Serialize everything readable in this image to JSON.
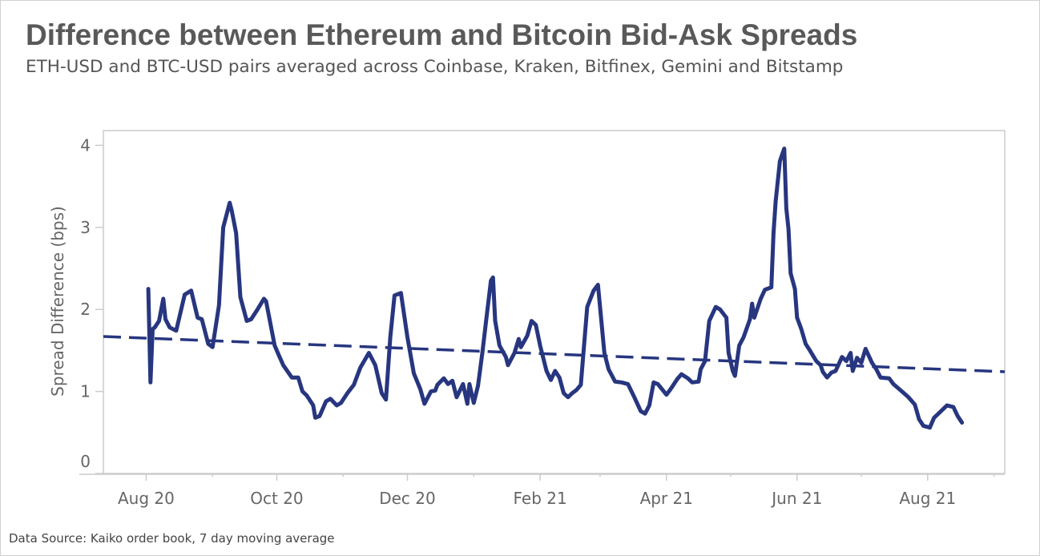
{
  "title": "Difference between Ethereum and Bitcoin Bid-Ask Spreads",
  "subtitle": "ETH-USD and BTC-USD pairs averaged across Coinbase, Kraken, Bitfinex, Gemini and Bitstamp",
  "source": "Data Source: Kaiko order book, 7 day moving average",
  "colors": {
    "series": "#27367f",
    "trend": "#27367f",
    "axis": "#cccccc",
    "text": "#666666"
  },
  "chart_data": {
    "type": "line",
    "title": "Difference between Ethereum and Bitcoin Bid-Ask Spreads",
    "xlabel": "",
    "ylabel": "Spread Difference (bps)",
    "xlim": [
      "2020-07-12",
      "2021-09-06"
    ],
    "ylim": [
      0,
      4.18
    ],
    "grid": false,
    "legend": "none",
    "y_ticks": [
      0,
      1,
      2,
      3,
      4
    ],
    "x_ticks": [
      {
        "date": "2020-08-01",
        "label": "Aug 20"
      },
      {
        "date": "2020-10-01",
        "label": "Oct 20"
      },
      {
        "date": "2020-12-01",
        "label": "Dec 20"
      },
      {
        "date": "2021-02-01",
        "label": "Feb 21"
      },
      {
        "date": "2021-04-01",
        "label": "Apr 21"
      },
      {
        "date": "2021-06-01",
        "label": "Jun 21"
      },
      {
        "date": "2021-08-01",
        "label": "Aug 21"
      }
    ],
    "x_minor_ticks": [
      "2020-09-01",
      "2020-11-01",
      "2021-01-01",
      "2021-03-01",
      "2021-05-01",
      "2021-07-01",
      "2021-09-01"
    ],
    "trendline": {
      "style": "dashed",
      "x": [
        "2020-07-12",
        "2021-09-06"
      ],
      "y": [
        1.67,
        1.24
      ]
    },
    "series": [
      {
        "x": [
          "2020-08-02",
          "2020-08-03",
          "2020-08-04",
          "2020-08-05",
          "2020-08-07",
          "2020-08-09",
          "2020-08-10",
          "2020-08-12",
          "2020-08-15",
          "2020-08-19",
          "2020-08-22",
          "2020-08-25",
          "2020-08-27",
          "2020-08-30",
          "2020-09-01",
          "2020-09-04",
          "2020-09-06",
          "2020-09-09",
          "2020-09-10",
          "2020-09-12",
          "2020-09-14",
          "2020-09-17",
          "2020-09-19",
          "2020-09-22",
          "2020-09-25",
          "2020-09-26",
          "2020-09-30",
          "2020-10-02",
          "2020-10-04",
          "2020-10-08",
          "2020-10-11",
          "2020-10-13",
          "2020-10-15",
          "2020-10-18",
          "2020-10-19",
          "2020-10-21",
          "2020-10-24",
          "2020-10-26",
          "2020-10-29",
          "2020-10-31",
          "2020-11-03",
          "2020-11-06",
          "2020-11-09",
          "2020-11-13",
          "2020-11-16",
          "2020-11-19",
          "2020-11-21",
          "2020-11-23",
          "2020-11-25",
          "2020-11-28",
          "2020-12-01",
          "2020-12-04",
          "2020-12-07",
          "2020-12-09",
          "2020-12-12",
          "2020-12-14",
          "2020-12-15",
          "2020-12-18",
          "2020-12-20",
          "2020-12-22",
          "2020-12-24",
          "2020-12-27",
          "2020-12-29",
          "2020-12-30",
          "2021-01-01",
          "2021-01-03",
          "2021-01-05",
          "2021-01-07",
          "2021-01-09",
          "2021-01-10",
          "2021-01-11",
          "2021-01-13",
          "2021-01-16",
          "2021-01-17",
          "2021-01-20",
          "2021-01-22",
          "2021-01-23",
          "2021-01-26",
          "2021-01-28",
          "2021-01-30",
          "2021-02-01",
          "2021-02-04",
          "2021-02-06",
          "2021-02-08",
          "2021-02-10",
          "2021-02-12",
          "2021-02-14",
          "2021-02-16",
          "2021-02-18",
          "2021-02-20",
          "2021-02-23",
          "2021-02-26",
          "2021-02-28",
          "2021-03-03",
          "2021-03-05",
          "2021-03-08",
          "2021-03-11",
          "2021-03-14",
          "2021-03-17",
          "2021-03-20",
          "2021-03-22",
          "2021-03-24",
          "2021-03-26",
          "2021-03-28",
          "2021-04-01",
          "2021-04-03",
          "2021-04-06",
          "2021-04-08",
          "2021-04-11",
          "2021-04-13",
          "2021-04-16",
          "2021-04-17",
          "2021-04-19",
          "2021-04-21",
          "2021-04-24",
          "2021-04-26",
          "2021-04-29",
          "2021-04-30",
          "2021-05-02",
          "2021-05-03",
          "2021-05-05",
          "2021-05-07",
          "2021-05-10",
          "2021-05-11",
          "2021-05-12",
          "2021-05-15",
          "2021-05-17",
          "2021-05-20",
          "2021-05-21",
          "2021-05-22",
          "2021-05-24",
          "2021-05-26",
          "2021-05-27",
          "2021-05-28",
          "2021-05-29",
          "2021-05-31",
          "2021-06-01",
          "2021-06-03",
          "2021-06-05",
          "2021-06-07",
          "2021-06-10",
          "2021-06-12",
          "2021-06-13",
          "2021-06-15",
          "2021-06-17",
          "2021-06-19",
          "2021-06-22",
          "2021-06-24",
          "2021-06-26",
          "2021-06-27",
          "2021-06-29",
          "2021-07-01",
          "2021-07-03",
          "2021-07-06",
          "2021-07-08",
          "2021-07-10",
          "2021-07-14",
          "2021-07-16",
          "2021-07-20",
          "2021-07-23",
          "2021-07-26",
          "2021-07-28",
          "2021-07-30",
          "2021-08-02",
          "2021-08-04",
          "2021-08-06",
          "2021-08-10",
          "2021-08-13",
          "2021-08-15",
          "2021-08-17"
        ],
        "y": [
          2.25,
          1.11,
          1.76,
          1.78,
          1.86,
          2.13,
          1.88,
          1.78,
          1.74,
          2.18,
          2.23,
          1.9,
          1.88,
          1.58,
          1.54,
          2.05,
          3.0,
          3.3,
          3.2,
          2.93,
          2.15,
          1.86,
          1.88,
          2.0,
          2.13,
          2.1,
          1.56,
          1.44,
          1.32,
          1.17,
          1.17,
          1.0,
          0.95,
          0.83,
          0.68,
          0.7,
          0.88,
          0.91,
          0.83,
          0.86,
          0.98,
          1.08,
          1.29,
          1.47,
          1.32,
          0.98,
          0.9,
          1.66,
          2.17,
          2.2,
          1.66,
          1.22,
          1.03,
          0.85,
          1.0,
          1.01,
          1.08,
          1.16,
          1.09,
          1.13,
          0.93,
          1.09,
          0.85,
          1.09,
          0.86,
          1.07,
          1.47,
          1.91,
          2.35,
          2.39,
          1.86,
          1.56,
          1.42,
          1.32,
          1.47,
          1.64,
          1.54,
          1.68,
          1.86,
          1.81,
          1.56,
          1.25,
          1.14,
          1.25,
          1.17,
          0.98,
          0.93,
          0.98,
          1.02,
          1.08,
          2.03,
          2.23,
          2.3,
          1.47,
          1.27,
          1.12,
          1.11,
          1.09,
          0.93,
          0.76,
          0.73,
          0.83,
          1.11,
          1.09,
          0.96,
          1.03,
          1.15,
          1.21,
          1.16,
          1.11,
          1.12,
          1.27,
          1.37,
          1.86,
          2.03,
          2.0,
          1.9,
          1.47,
          1.25,
          1.19,
          1.56,
          1.66,
          1.88,
          2.07,
          1.9,
          2.13,
          2.24,
          2.27,
          2.93,
          3.32,
          3.81,
          3.96,
          3.23,
          2.98,
          2.44,
          2.25,
          1.9,
          1.76,
          1.58,
          1.5,
          1.37,
          1.32,
          1.24,
          1.17,
          1.23,
          1.25,
          1.42,
          1.37,
          1.47,
          1.25,
          1.41,
          1.35,
          1.52,
          1.35,
          1.27,
          1.17,
          1.16,
          1.09,
          1.0,
          0.93,
          0.84,
          0.66,
          0.58,
          0.56,
          0.68,
          0.73,
          0.83,
          0.81,
          0.7,
          0.62
        ]
      }
    ]
  }
}
